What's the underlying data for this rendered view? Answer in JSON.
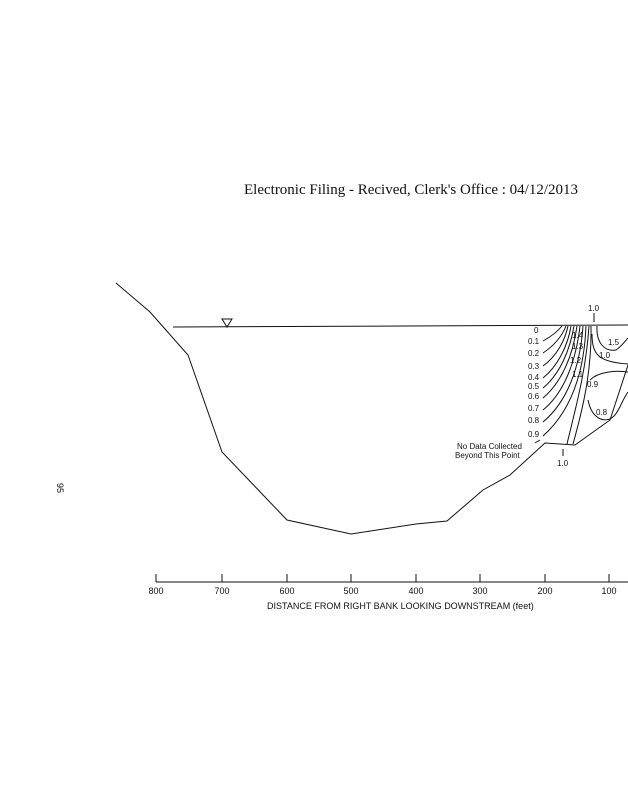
{
  "header": {
    "title": "Electronic Filing - Recived, Clerk's Office :  04/12/2013"
  },
  "page_number": "95",
  "x_axis": {
    "label": "DISTANCE FROM RIGHT BANK LOOKING DOWNSTREAM (feet)",
    "ticks": [
      "800",
      "700",
      "600",
      "500",
      "400",
      "300",
      "200",
      "100"
    ]
  },
  "annotation": {
    "line1": "No Data Collected",
    "line2": "Beyond This Point"
  },
  "contour_labels": [
    "0",
    "0.1",
    "0.2",
    "0.3",
    "0.4",
    "0.5",
    "0.6",
    "0.7",
    "0.8",
    "0.9",
    "1.4",
    "1.3",
    "1.2",
    "1.1",
    "1.0",
    "1.5",
    "1.0",
    "0.9",
    "0.8",
    "1.0"
  ]
}
